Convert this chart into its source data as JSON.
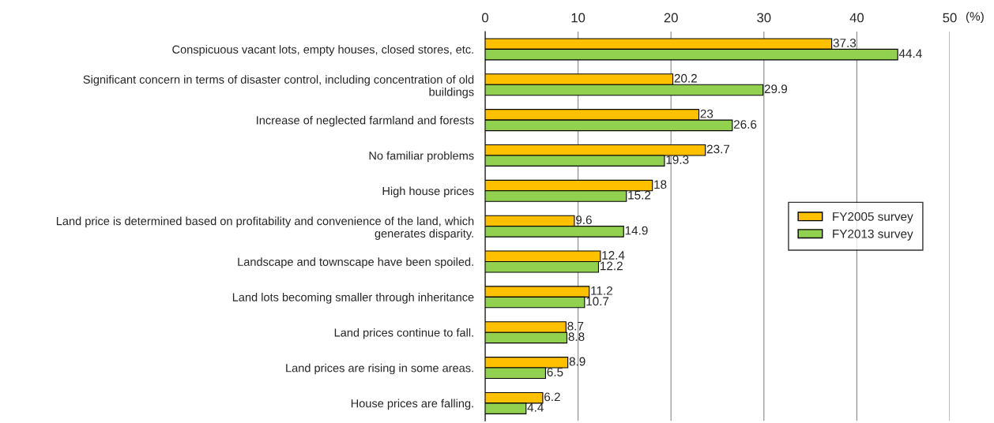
{
  "chart_data": {
    "type": "bar",
    "orientation": "horizontal",
    "xlabel": "(%)",
    "categories": [
      "Conspicuous vacant lots, empty houses, closed stores, etc.",
      "Significant concern in terms of disaster control, including concentration of old\nbuildings",
      "Increase of neglected farmland and forests",
      "No familiar problems",
      "High house prices",
      "Land price is determined based on profitability and convenience of the land, which\ngenerates disparity.",
      "Landscape and townscape have been spoiled.",
      "Land lots becoming smaller through inheritance",
      "Land prices continue to fall.",
      "Land prices are rising in some areas.",
      "House prices are falling."
    ],
    "series": [
      {
        "name": "FY2005 survey",
        "color": "#ffc000",
        "values": [
          37.3,
          20.2,
          23,
          23.7,
          18,
          9.6,
          12.4,
          11.2,
          8.7,
          8.9,
          6.2
        ]
      },
      {
        "name": "FY2013 survey",
        "color": "#92d050",
        "values": [
          44.4,
          29.9,
          26.6,
          19.3,
          15.2,
          14.9,
          12.2,
          10.7,
          8.8,
          6.5,
          4.4
        ]
      }
    ],
    "xlim": [
      0,
      50
    ],
    "xticks": [
      0,
      10,
      20,
      30,
      40,
      50
    ],
    "grid": "x",
    "legend": "right",
    "data_labels": true
  }
}
